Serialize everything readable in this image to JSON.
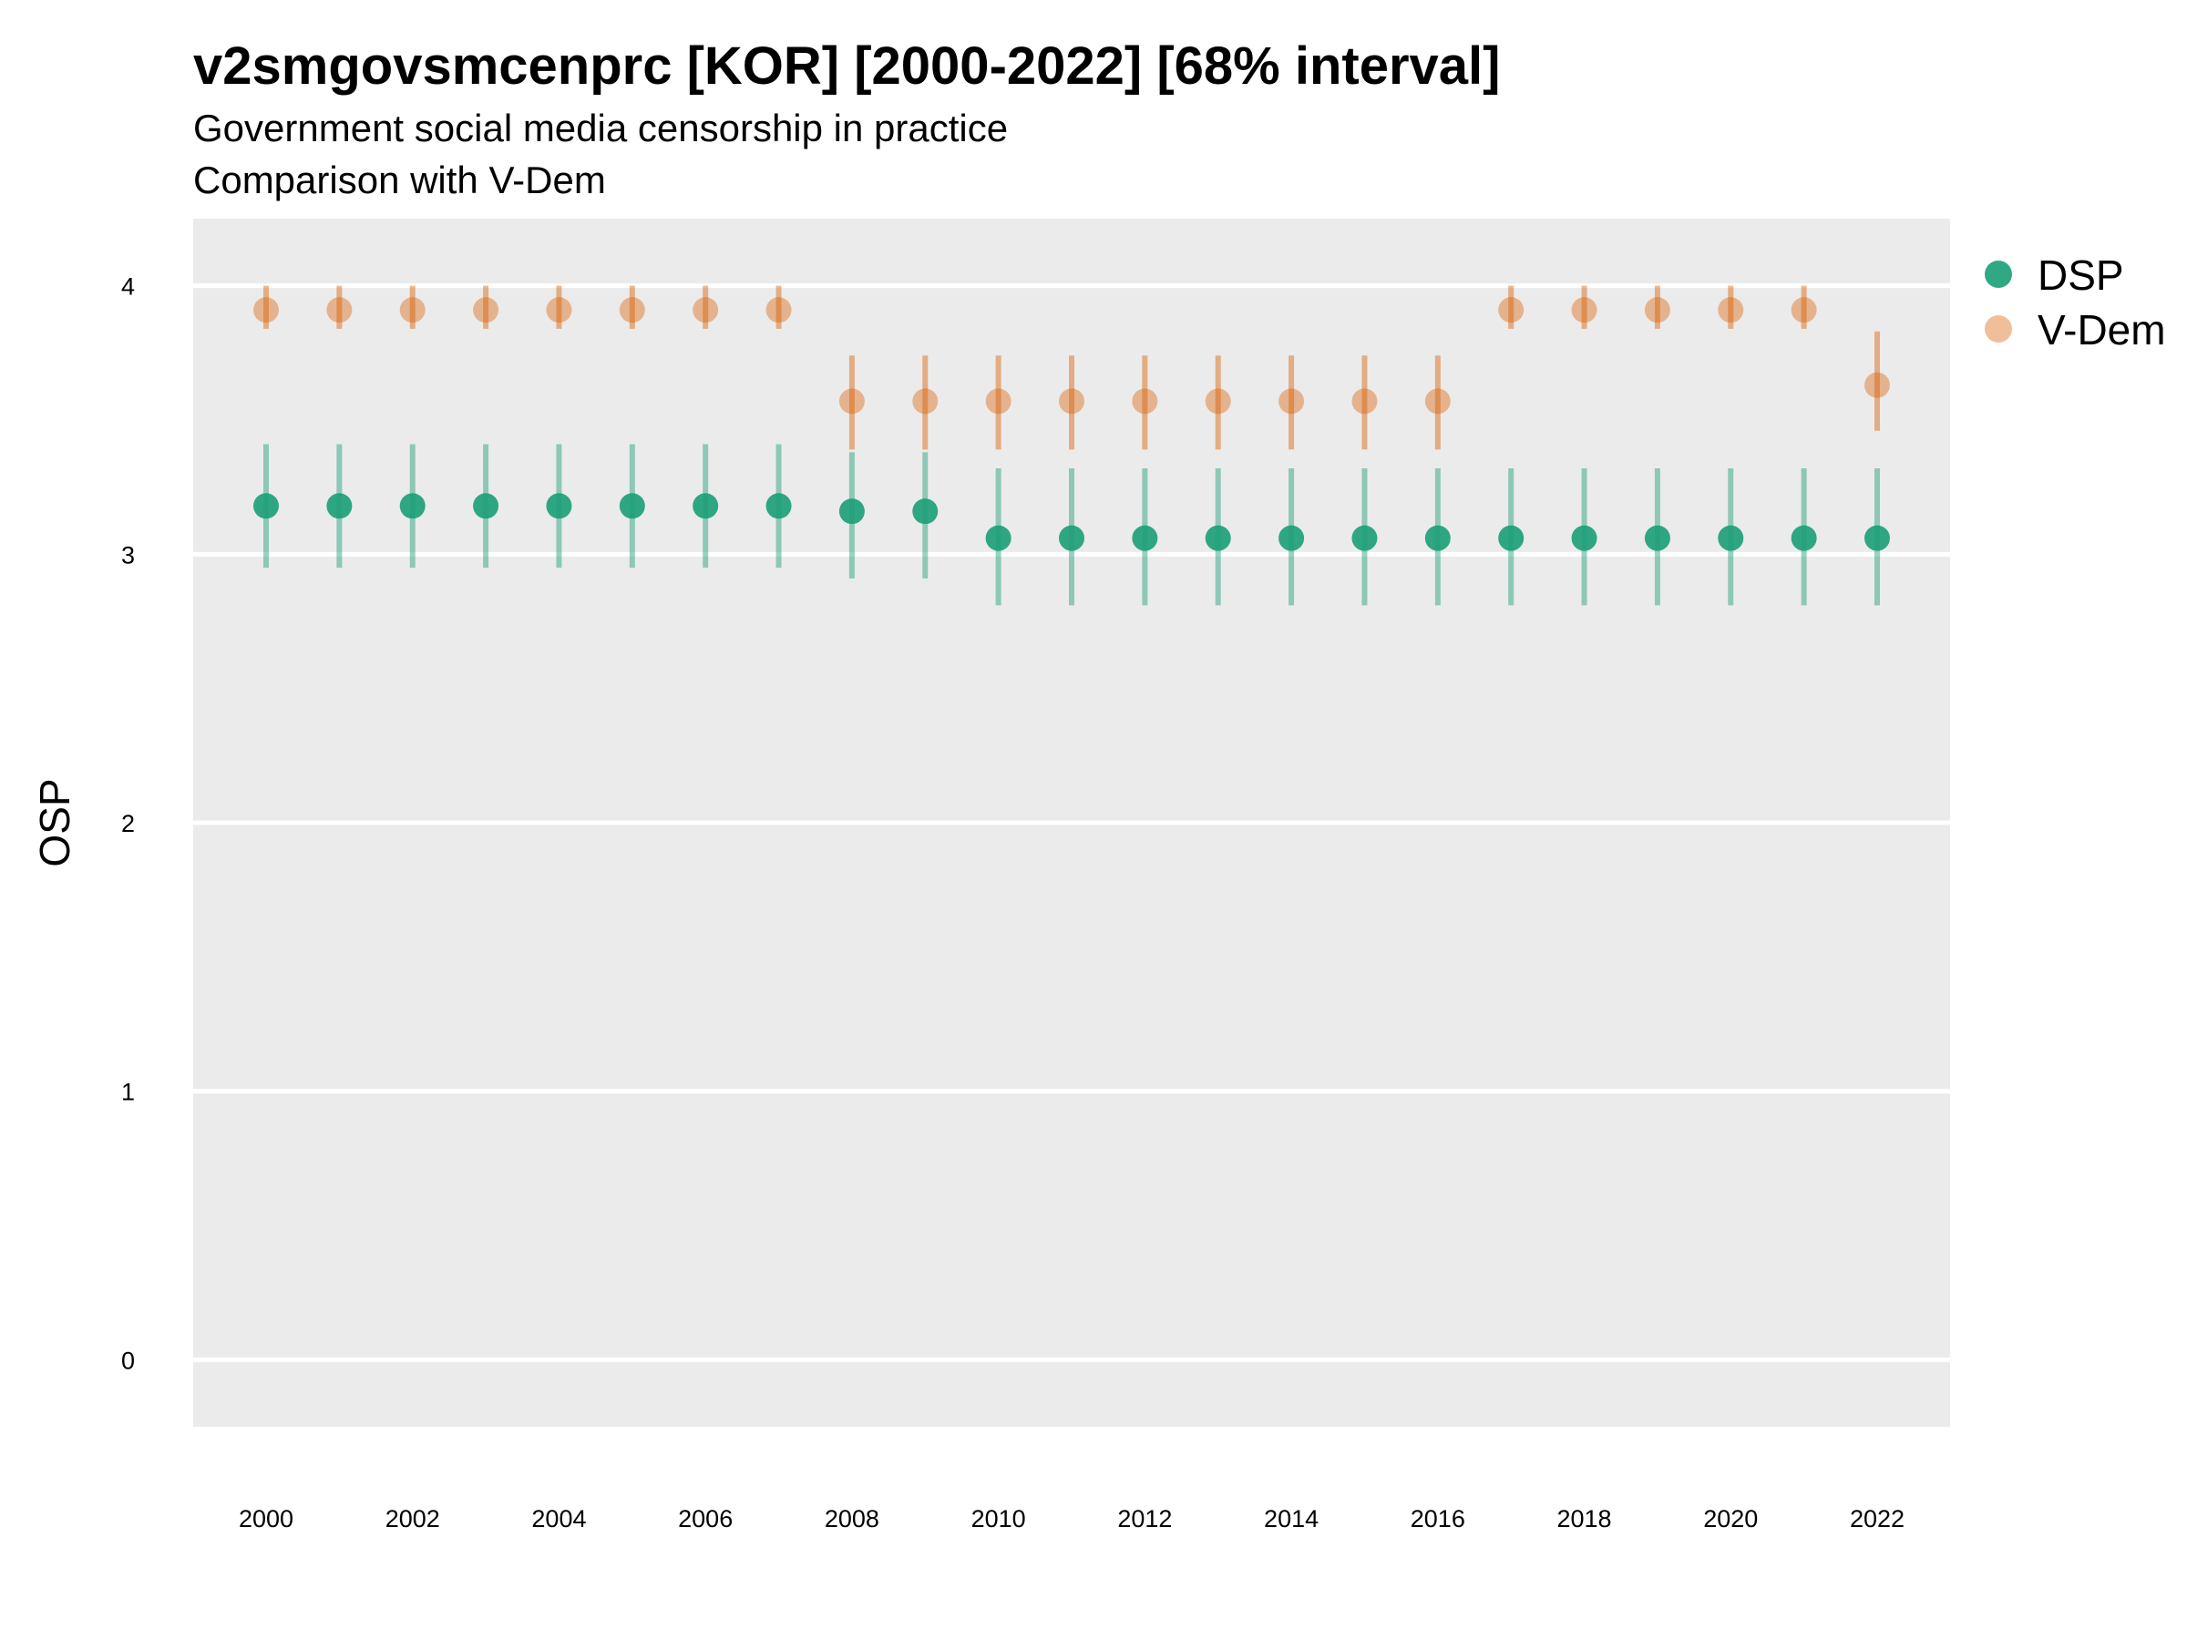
{
  "chart_data": {
    "type": "scatter",
    "title": "v2smgovsmcenprc [KOR] [2000-2022] [68% interval]",
    "subtitle": "Government social media censorship in practice",
    "subtitle2": "Comparison with V-Dem",
    "xlabel": "",
    "ylabel": "OSP",
    "ylim": [
      -0.25,
      4.25
    ],
    "yticks": [
      "0",
      "1",
      "2",
      "3",
      "4"
    ],
    "xticks": [
      "2000",
      "2002",
      "2004",
      "2006",
      "2008",
      "2010",
      "2012",
      "2014",
      "2016",
      "2018",
      "2020",
      "2022"
    ],
    "grid": true,
    "legend_position": "right",
    "x": [
      2000,
      2001,
      2002,
      2003,
      2004,
      2005,
      2006,
      2007,
      2008,
      2009,
      2010,
      2011,
      2012,
      2013,
      2014,
      2015,
      2016,
      2017,
      2018,
      2019,
      2020,
      2021,
      2022
    ],
    "series": [
      {
        "name": "DSP",
        "color": "#1b9e77",
        "values": [
          3.18,
          3.18,
          3.18,
          3.18,
          3.18,
          3.18,
          3.18,
          3.18,
          3.16,
          3.16,
          3.06,
          3.06,
          3.06,
          3.06,
          3.06,
          3.06,
          3.06,
          3.06,
          3.06,
          3.06,
          3.06,
          3.06,
          3.06
        ],
        "lower": [
          2.95,
          2.95,
          2.95,
          2.95,
          2.95,
          2.95,
          2.95,
          2.95,
          2.91,
          2.91,
          2.81,
          2.81,
          2.81,
          2.81,
          2.81,
          2.81,
          2.81,
          2.81,
          2.81,
          2.81,
          2.81,
          2.81,
          2.81
        ],
        "upper": [
          3.41,
          3.41,
          3.41,
          3.41,
          3.41,
          3.41,
          3.41,
          3.41,
          3.38,
          3.38,
          3.32,
          3.32,
          3.32,
          3.32,
          3.32,
          3.32,
          3.32,
          3.32,
          3.32,
          3.32,
          3.32,
          3.32,
          3.32
        ]
      },
      {
        "name": "V-Dem",
        "color": "#d95f02",
        "values": [
          3.91,
          3.91,
          3.91,
          3.91,
          3.91,
          3.91,
          3.91,
          3.91,
          3.57,
          3.57,
          3.57,
          3.57,
          3.57,
          3.57,
          3.57,
          3.57,
          3.57,
          3.91,
          3.91,
          3.91,
          3.91,
          3.91,
          3.63
        ],
        "lower": [
          3.84,
          3.84,
          3.84,
          3.84,
          3.84,
          3.84,
          3.84,
          3.84,
          3.39,
          3.39,
          3.39,
          3.39,
          3.39,
          3.39,
          3.39,
          3.39,
          3.39,
          3.84,
          3.84,
          3.84,
          3.84,
          3.84,
          3.46
        ],
        "upper": [
          4.0,
          4.0,
          4.0,
          4.0,
          4.0,
          4.0,
          4.0,
          4.0,
          3.74,
          3.74,
          3.74,
          3.74,
          3.74,
          3.74,
          3.74,
          3.74,
          3.74,
          4.0,
          4.0,
          4.0,
          4.0,
          4.0,
          3.83
        ]
      }
    ]
  }
}
